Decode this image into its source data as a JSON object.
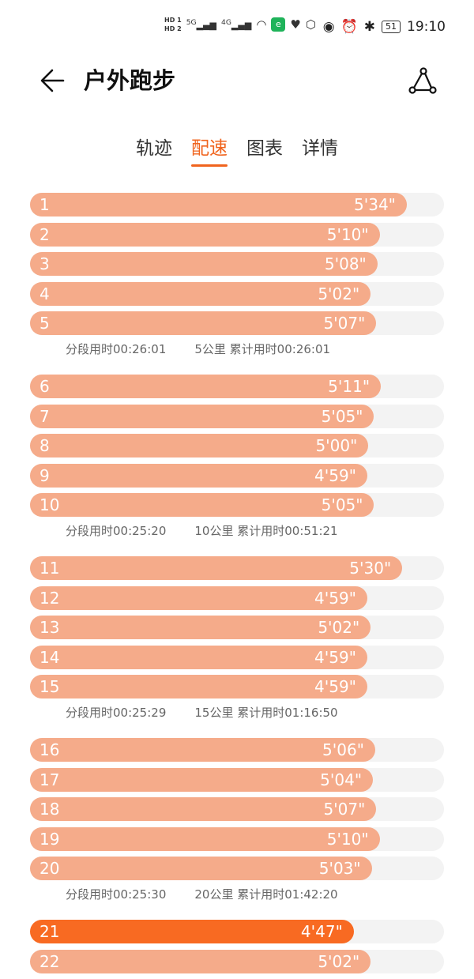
{
  "status_bar": {
    "time": "19:10",
    "battery": "51",
    "sim1": "HD 1",
    "sim2": "HD 2",
    "net1": "5G",
    "net2": "4G",
    "icons": [
      "signal-icon",
      "signal-icon",
      "wifi-icon",
      "app-icon",
      "heart-icon",
      "hand-icon",
      "eye-icon",
      "alarm-icon",
      "bluetooth-icon",
      "battery-icon"
    ]
  },
  "header": {
    "title": "户外跑步",
    "back_icon": "arrow-left-icon",
    "route_icon": "route-icon"
  },
  "tabs": [
    {
      "label": "轨迹"
    },
    {
      "label": "配速",
      "active": true
    },
    {
      "label": "图表"
    },
    {
      "label": "详情"
    }
  ],
  "colors": {
    "accent": "#f0641e",
    "bar": "#f5ab8a",
    "best_bar": "#f86a22",
    "track": "#f3f3f3"
  },
  "splits": [
    {
      "km": "1",
      "pace": "5'34\"",
      "seconds": 334
    },
    {
      "km": "2",
      "pace": "5'10\"",
      "seconds": 310
    },
    {
      "km": "3",
      "pace": "5'08\"",
      "seconds": 308
    },
    {
      "km": "4",
      "pace": "5'02\"",
      "seconds": 302
    },
    {
      "km": "5",
      "pace": "5'07\"",
      "seconds": 307
    },
    {
      "km": "6",
      "pace": "5'11\"",
      "seconds": 311
    },
    {
      "km": "7",
      "pace": "5'05\"",
      "seconds": 305
    },
    {
      "km": "8",
      "pace": "5'00\"",
      "seconds": 300
    },
    {
      "km": "9",
      "pace": "4'59\"",
      "seconds": 299
    },
    {
      "km": "10",
      "pace": "5'05\"",
      "seconds": 305
    },
    {
      "km": "11",
      "pace": "5'30\"",
      "seconds": 330
    },
    {
      "km": "12",
      "pace": "4'59\"",
      "seconds": 299
    },
    {
      "km": "13",
      "pace": "5'02\"",
      "seconds": 302
    },
    {
      "km": "14",
      "pace": "4'59\"",
      "seconds": 299
    },
    {
      "km": "15",
      "pace": "4'59\"",
      "seconds": 299
    },
    {
      "km": "16",
      "pace": "5'06\"",
      "seconds": 306
    },
    {
      "km": "17",
      "pace": "5'04\"",
      "seconds": 304
    },
    {
      "km": "18",
      "pace": "5'07\"",
      "seconds": 307
    },
    {
      "km": "19",
      "pace": "5'10\"",
      "seconds": 310
    },
    {
      "km": "20",
      "pace": "5'03\"",
      "seconds": 303
    },
    {
      "km": "21",
      "pace": "4'47\"",
      "seconds": 287,
      "best": true
    },
    {
      "km": "22",
      "pace": "5'02\"",
      "seconds": 302
    }
  ],
  "summaries": [
    {
      "segment": "分段用时00:26:01",
      "total": "5公里 累计用时00:26:01"
    },
    {
      "segment": "分段用时00:25:20",
      "total": "10公里 累计用时00:51:21"
    },
    {
      "segment": "分段用时00:25:29",
      "total": "15公里 累计用时01:16:50"
    },
    {
      "segment": "分段用时00:25:30",
      "total": "20公里 累计用时01:42:20"
    }
  ]
}
